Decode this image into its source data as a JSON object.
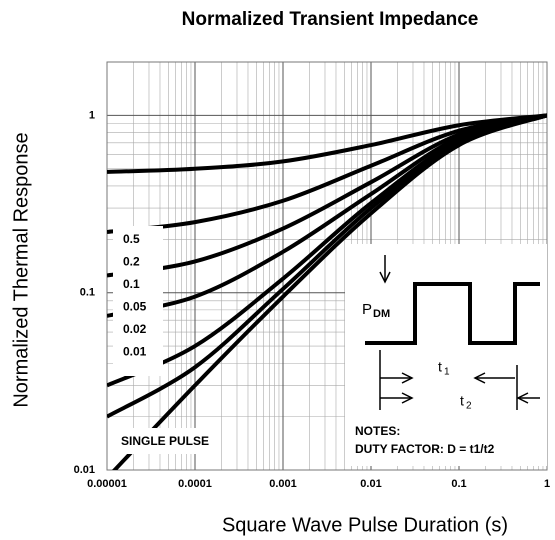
{
  "chart_data": {
    "type": "line",
    "title": "Normalized Transient Impedance",
    "x_label": "Square Wave Pulse Duration (s)",
    "y_label": "Normalized Thermal Response",
    "x": [
      1e-05,
      0.0001,
      0.001,
      0.01,
      0.1,
      1
    ],
    "series": [
      {
        "name": "0.5",
        "color": "#000000",
        "values": [
          0.48,
          0.5,
          0.55,
          0.68,
          0.88,
          1
        ]
      },
      {
        "name": "0.2",
        "color": "#000000",
        "values": [
          0.22,
          0.25,
          0.33,
          0.52,
          0.82,
          1
        ]
      },
      {
        "name": "0.1",
        "color": "#000000",
        "values": [
          0.125,
          0.15,
          0.23,
          0.42,
          0.78,
          1
        ]
      },
      {
        "name": "0.05",
        "color": "#000000",
        "values": [
          0.074,
          0.095,
          0.17,
          0.36,
          0.75,
          1
        ]
      },
      {
        "name": "0.02",
        "color": "#000000",
        "values": [
          0.03,
          0.05,
          0.12,
          0.32,
          0.72,
          1
        ]
      },
      {
        "name": "0.01",
        "color": "#000000",
        "values": [
          0.02,
          0.038,
          0.105,
          0.3,
          0.7,
          1
        ]
      },
      {
        "name": "SINGLE PULSE",
        "color": "#000000",
        "values": [
          0.009,
          0.03,
          0.095,
          0.28,
          0.68,
          1
        ]
      }
    ],
    "xlim": [
      1e-05,
      1
    ],
    "ylim": [
      0.01,
      2
    ],
    "xticks": [
      1e-05,
      0.0001,
      0.001,
      0.01,
      0.1,
      1
    ],
    "yticks": [
      0.01,
      0.1,
      1
    ],
    "log_x": true,
    "log_y": true,
    "grid": true,
    "inset": {
      "p": "P",
      "p_sub": "DM",
      "t1": "t",
      "t1_sub": "1",
      "t2": "t",
      "t2_sub": "2",
      "notes": "NOTES:",
      "duty": "DUTY FACTOR: D = t1/t2"
    }
  }
}
